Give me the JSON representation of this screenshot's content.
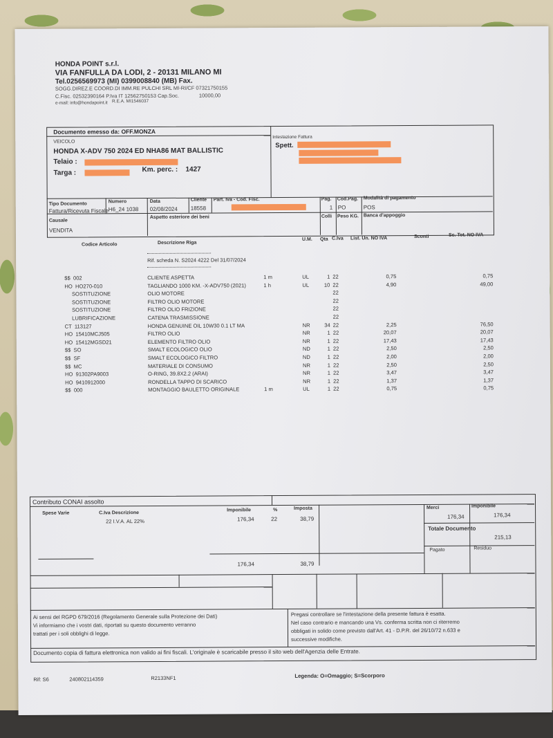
{
  "company": {
    "name": "HONDA POINT s.r.l.",
    "address": "VIA FANFULLA DA LODI, 2 - 20131 MILANO MI",
    "phone": "Tel.0256569973 (MI) 0399008840 (MB) Fax.",
    "legal1": "SOGG.DIREZ.E COORD.DI IMM.RE PULCHI SRL MI-RI/CF 07321750155",
    "legal2": "C.Fisc. 02532390164 P.Iva IT 12562750153 Cap.Soc.",
    "capital": "10000,00",
    "email": "e-mail: info@hondapoint.it",
    "rea": "R.E.A. MI1546037"
  },
  "issued_by": "Documento emesso da: OFF.MONZA",
  "vehicle": {
    "label": "VEICOLO",
    "model": "HONDA X-ADV 750  2024 ED NHA86 MAT BALLISTIC",
    "frame_label": "Telaio :",
    "plate_label": "Targa :",
    "km_label": "Km. perc. :",
    "km": "1427"
  },
  "billing": {
    "label": "Intestazione Fattura",
    "spett": "Spett."
  },
  "doc_info": {
    "tipo_label": "Tipo Documento",
    "tipo": "Fattura/Ricevuta Fiscale",
    "numero_label": "Numero",
    "numero": "H6_24  1038",
    "data_label": "Data",
    "data": "02/08/2024",
    "cliente_label": "Cliente",
    "cliente": "18558",
    "piva_label": "Part. Iva - Cod. Fisc.",
    "pag_label": "Pag.",
    "pag": "1",
    "codpag_label": "Cod.Pag.",
    "codpag": "PO",
    "modalita_label": "Modalità di pagamento",
    "modalita": "POS",
    "causale_label": "Causale",
    "causale": "VENDITA",
    "aspetto_label": "Aspetto esteriore dei beni",
    "colli_label": "Colli",
    "peso_label": "Peso KG.",
    "banca_label": "Banca d'appoggio"
  },
  "table": {
    "headers": {
      "code": "Codice Articolo",
      "desc": "Descrizione Riga",
      "um": "U.M.",
      "qta": "Qta",
      "iva": "C.Iva",
      "price": "List. Un. NO IVA",
      "disc": "Sconti",
      "tot": "Sc. Tot. NO IVA"
    },
    "ref": "Rif. scheda N. S2024 4222 Del 31/07/2024",
    "rows": [
      {
        "code": "$$  002",
        "desc": "CLIENTE ASPETTA",
        "unit": "1 m",
        "um": "UL",
        "qta": "1",
        "iva": "22",
        "price": "0,75",
        "tot": "0,75"
      },
      {
        "code": "HO  HO270-010",
        "desc": "TAGLIANDO  1000 KM. -X-ADV750 (2021)",
        "unit": "1 h",
        "um": "UL",
        "qta": "10",
        "iva": "22",
        "price": "4,90",
        "tot": "49,00"
      },
      {
        "code": "     SOSTITUZIONE",
        "desc": "OLIO MOTORE",
        "unit": "",
        "um": "",
        "qta": "",
        "iva": "22",
        "price": "",
        "tot": ""
      },
      {
        "code": "     SOSTITUZIONE",
        "desc": "FILTRO OLIO MOTORE",
        "unit": "",
        "um": "",
        "qta": "",
        "iva": "22",
        "price": "",
        "tot": ""
      },
      {
        "code": "     SOSTITUZIONE",
        "desc": "FILTRO OLIO FRIZIONE",
        "unit": "",
        "um": "",
        "qta": "",
        "iva": "22",
        "price": "",
        "tot": ""
      },
      {
        "code": "     LUBRIFICAZIONE",
        "desc": "CATENA TRASMISSIONE",
        "unit": "",
        "um": "",
        "qta": "",
        "iva": "22",
        "price": "",
        "tot": ""
      },
      {
        "code": "CT  113127",
        "desc": "HONDA GENUINE OIL 10W30 0.1 LT MA",
        "unit": "",
        "um": "NR",
        "qta": "34",
        "iva": "22",
        "price": "2,25",
        "tot": "76,50"
      },
      {
        "code": "HO  15410MCJ505",
        "desc": "FILTRO OLIO",
        "unit": "",
        "um": "NR",
        "qta": "1",
        "iva": "22",
        "price": "20,07",
        "tot": "20,07"
      },
      {
        "code": "HO  15412MGSD21",
        "desc": "ELEMENTO FILTRO OLIO",
        "unit": "",
        "um": "NR",
        "qta": "1",
        "iva": "22",
        "price": "17,43",
        "tot": "17,43"
      },
      {
        "code": "$$  SO",
        "desc": "SMALT ECOLOGICO OLIO",
        "unit": "",
        "um": "ND",
        "qta": "1",
        "iva": "22",
        "price": "2,50",
        "tot": "2,50"
      },
      {
        "code": "$$  SF",
        "desc": "SMALT ECOLOGICO FILTRO",
        "unit": "",
        "um": "ND",
        "qta": "1",
        "iva": "22",
        "price": "2,00",
        "tot": "2,00"
      },
      {
        "code": "$$  MC",
        "desc": "MATERIALE DI CONSUMO",
        "unit": "",
        "um": "NR",
        "qta": "1",
        "iva": "22",
        "price": "2,50",
        "tot": "2,50"
      },
      {
        "code": "HO  91302PA9003",
        "desc": "O-RING, 39.8X2.2 (ARAI)",
        "unit": "",
        "um": "NR",
        "qta": "1",
        "iva": "22",
        "price": "3,47",
        "tot": "3,47"
      },
      {
        "code": "HO  9410912000",
        "desc": "RONDELLA TAPPO DI SCARICO",
        "unit": "",
        "um": "NR",
        "qta": "1",
        "iva": "22",
        "price": "1,37",
        "tot": "1,37"
      },
      {
        "code": "$$  000",
        "desc": "MONTAGGIO BAULETTO ORIGINALE",
        "unit": "1 m",
        "um": "UL",
        "qta": "1",
        "iva": "22",
        "price": "0,75",
        "tot": "0,75"
      }
    ]
  },
  "summary": {
    "conai": "Contributo CONAI assolto",
    "spese_label": "Spese Varie",
    "civa_label": "C.Iva Descrizione",
    "civa_row": "22  I.V.A. AL 22%",
    "imponibile_label": "Imponibile",
    "imponibile": "176,34",
    "perc_label": "%",
    "perc": "22",
    "imposta_label": "Imposta",
    "imposta": "38,79",
    "imponibile_total": "176,34",
    "imposta_total": "38,79",
    "merci_label": "Merci",
    "merci": "176,34",
    "imp2_label": "Imponibile",
    "imp2": "176,34",
    "totale_label": "Totale Documento",
    "totale": "215,13",
    "pagato_label": "Pagato",
    "residuo_label": "Residuo"
  },
  "notes": {
    "privacy": [
      "Ai sensi del RGPD 679/2016 (Regolamento Generale sulla Protezione dei Dati)",
      "Vi informiamo che i vostri dati, riportati su questo documento verranno",
      "trattati per i soli obblighi di legge."
    ],
    "check": [
      "Pregasi controllare se l'intestazione della presente fattura è esatta.",
      "Nel caso contrario e mancando una Vs. conferma scritta non ci riterremo",
      "obbligati in solido come previsto dall'Art. 41 - D.P.R. del 26/10/72 n.633 e",
      "successive modifiche."
    ],
    "copy": "Documento copia di fattura elettronica non valido ai fini fiscali. L'originale è scaricabile presso il sito web dell'Agenzia delle Entrate."
  },
  "footer": {
    "rif": "Rif:  S6",
    "code1": "240802114359",
    "code2": "R2133NF1",
    "legenda": "Legenda: O=Omaggio; S=Scorporo"
  },
  "colors": {
    "redaction": "#f4935a",
    "paper": "#ebebee"
  }
}
